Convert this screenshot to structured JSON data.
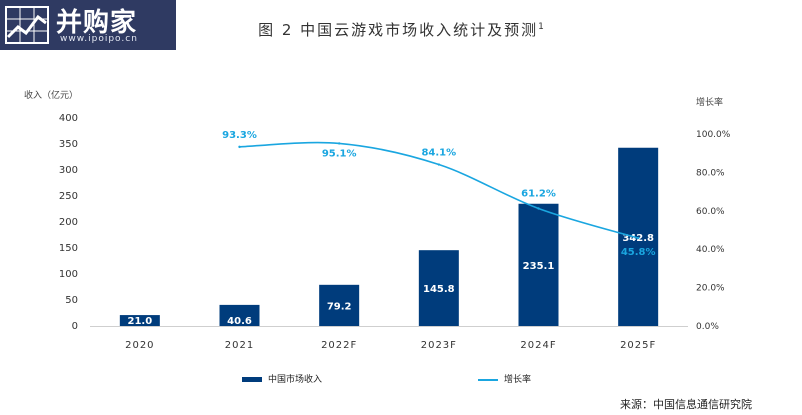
{
  "logo": {
    "title": "并购家",
    "url": "www.ipoipo.cn"
  },
  "chart_data": {
    "type": "bar",
    "title": "图 2  中国云游戏市场收入统计及预测",
    "title_note": "1",
    "categories": [
      "2020",
      "2021",
      "2022F",
      "2023F",
      "2024F",
      "2025F"
    ],
    "series": [
      {
        "name": "中国市场收入",
        "type": "bar",
        "axis": "left",
        "values": [
          21.0,
          40.6,
          79.2,
          145.8,
          235.1,
          342.8
        ],
        "labels": [
          "21.0",
          "40.6",
          "79.2",
          "145.8",
          "235.1",
          "342.8"
        ],
        "color": "#003c7c"
      },
      {
        "name": "增长率",
        "type": "line",
        "axis": "right",
        "x": [
          "2021",
          "2022F",
          "2023F",
          "2024F",
          "2025F"
        ],
        "values": [
          93.3,
          95.1,
          84.1,
          61.2,
          45.8
        ],
        "labels": [
          "93.3%",
          "95.1%",
          "84.1%",
          "61.2%",
          "45.8%"
        ],
        "color": "#1aa6e0",
        "smooth": true
      }
    ],
    "ylabel_left": "收入（亿元）",
    "ylabel_right": "增长率",
    "ylim_left": [
      0,
      400
    ],
    "yticks_left": [
      "400",
      "350",
      "300",
      "250",
      "200",
      "150",
      "100",
      "50",
      "0"
    ],
    "ylim_right": [
      0,
      100
    ],
    "yticks_right": [
      "100.0%",
      "80.0%",
      "60.0%",
      "40.0%",
      "20.0%",
      "0.0%"
    ],
    "grid": false,
    "legend_position": "bottom"
  },
  "source": "来源：中国信息通信研究院"
}
